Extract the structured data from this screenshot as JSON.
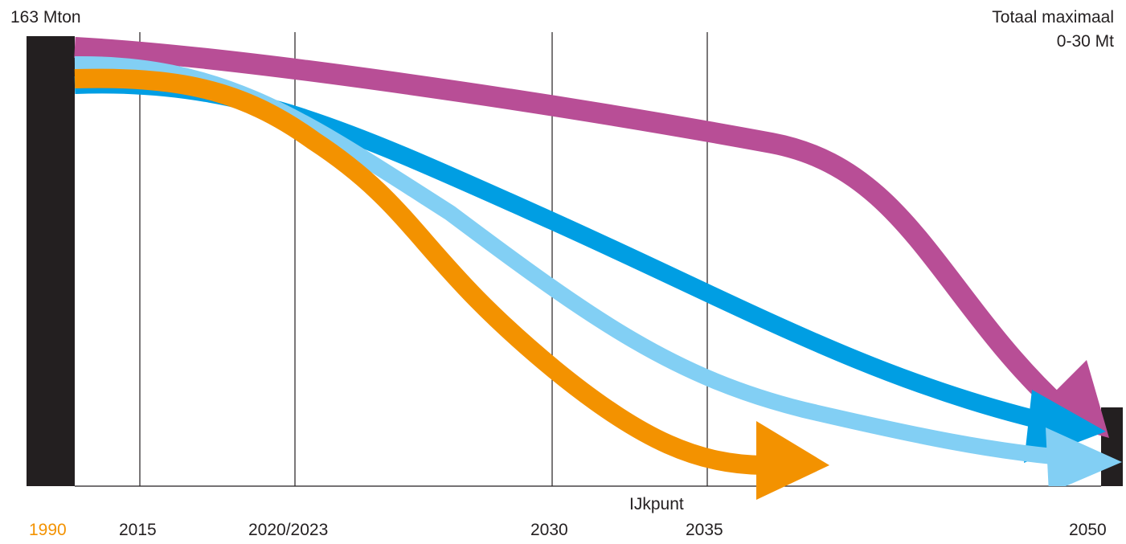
{
  "chart_data": {
    "type": "line",
    "title": "",
    "y_top_label": "163 Mton",
    "target_label_line1": "Totaal maximaal",
    "target_label_line2": "0-30 Mt",
    "milestone_label": "IJkpunt",
    "x_ticks": [
      {
        "label": "1990",
        "color": "#f39200"
      },
      {
        "label": "2015",
        "color": "#231f20"
      },
      {
        "label": "2020/2023",
        "color": "#231f20"
      },
      {
        "label": "2030",
        "color": "#231f20"
      },
      {
        "label": "2035",
        "color": "#231f20"
      },
      {
        "label": "2050",
        "color": "#231f20"
      }
    ],
    "vertical_gridlines": [
      "2015",
      "2020/2023",
      "2030",
      "2035"
    ],
    "ylim": [
      0,
      163
    ],
    "start_value": 163,
    "target_range": [
      0,
      30
    ],
    "grid": false,
    "series": [
      {
        "color": "#b84e96"
      },
      {
        "color": "#009ee3"
      },
      {
        "color": "#82cff4"
      },
      {
        "color": "#f39200"
      }
    ]
  }
}
